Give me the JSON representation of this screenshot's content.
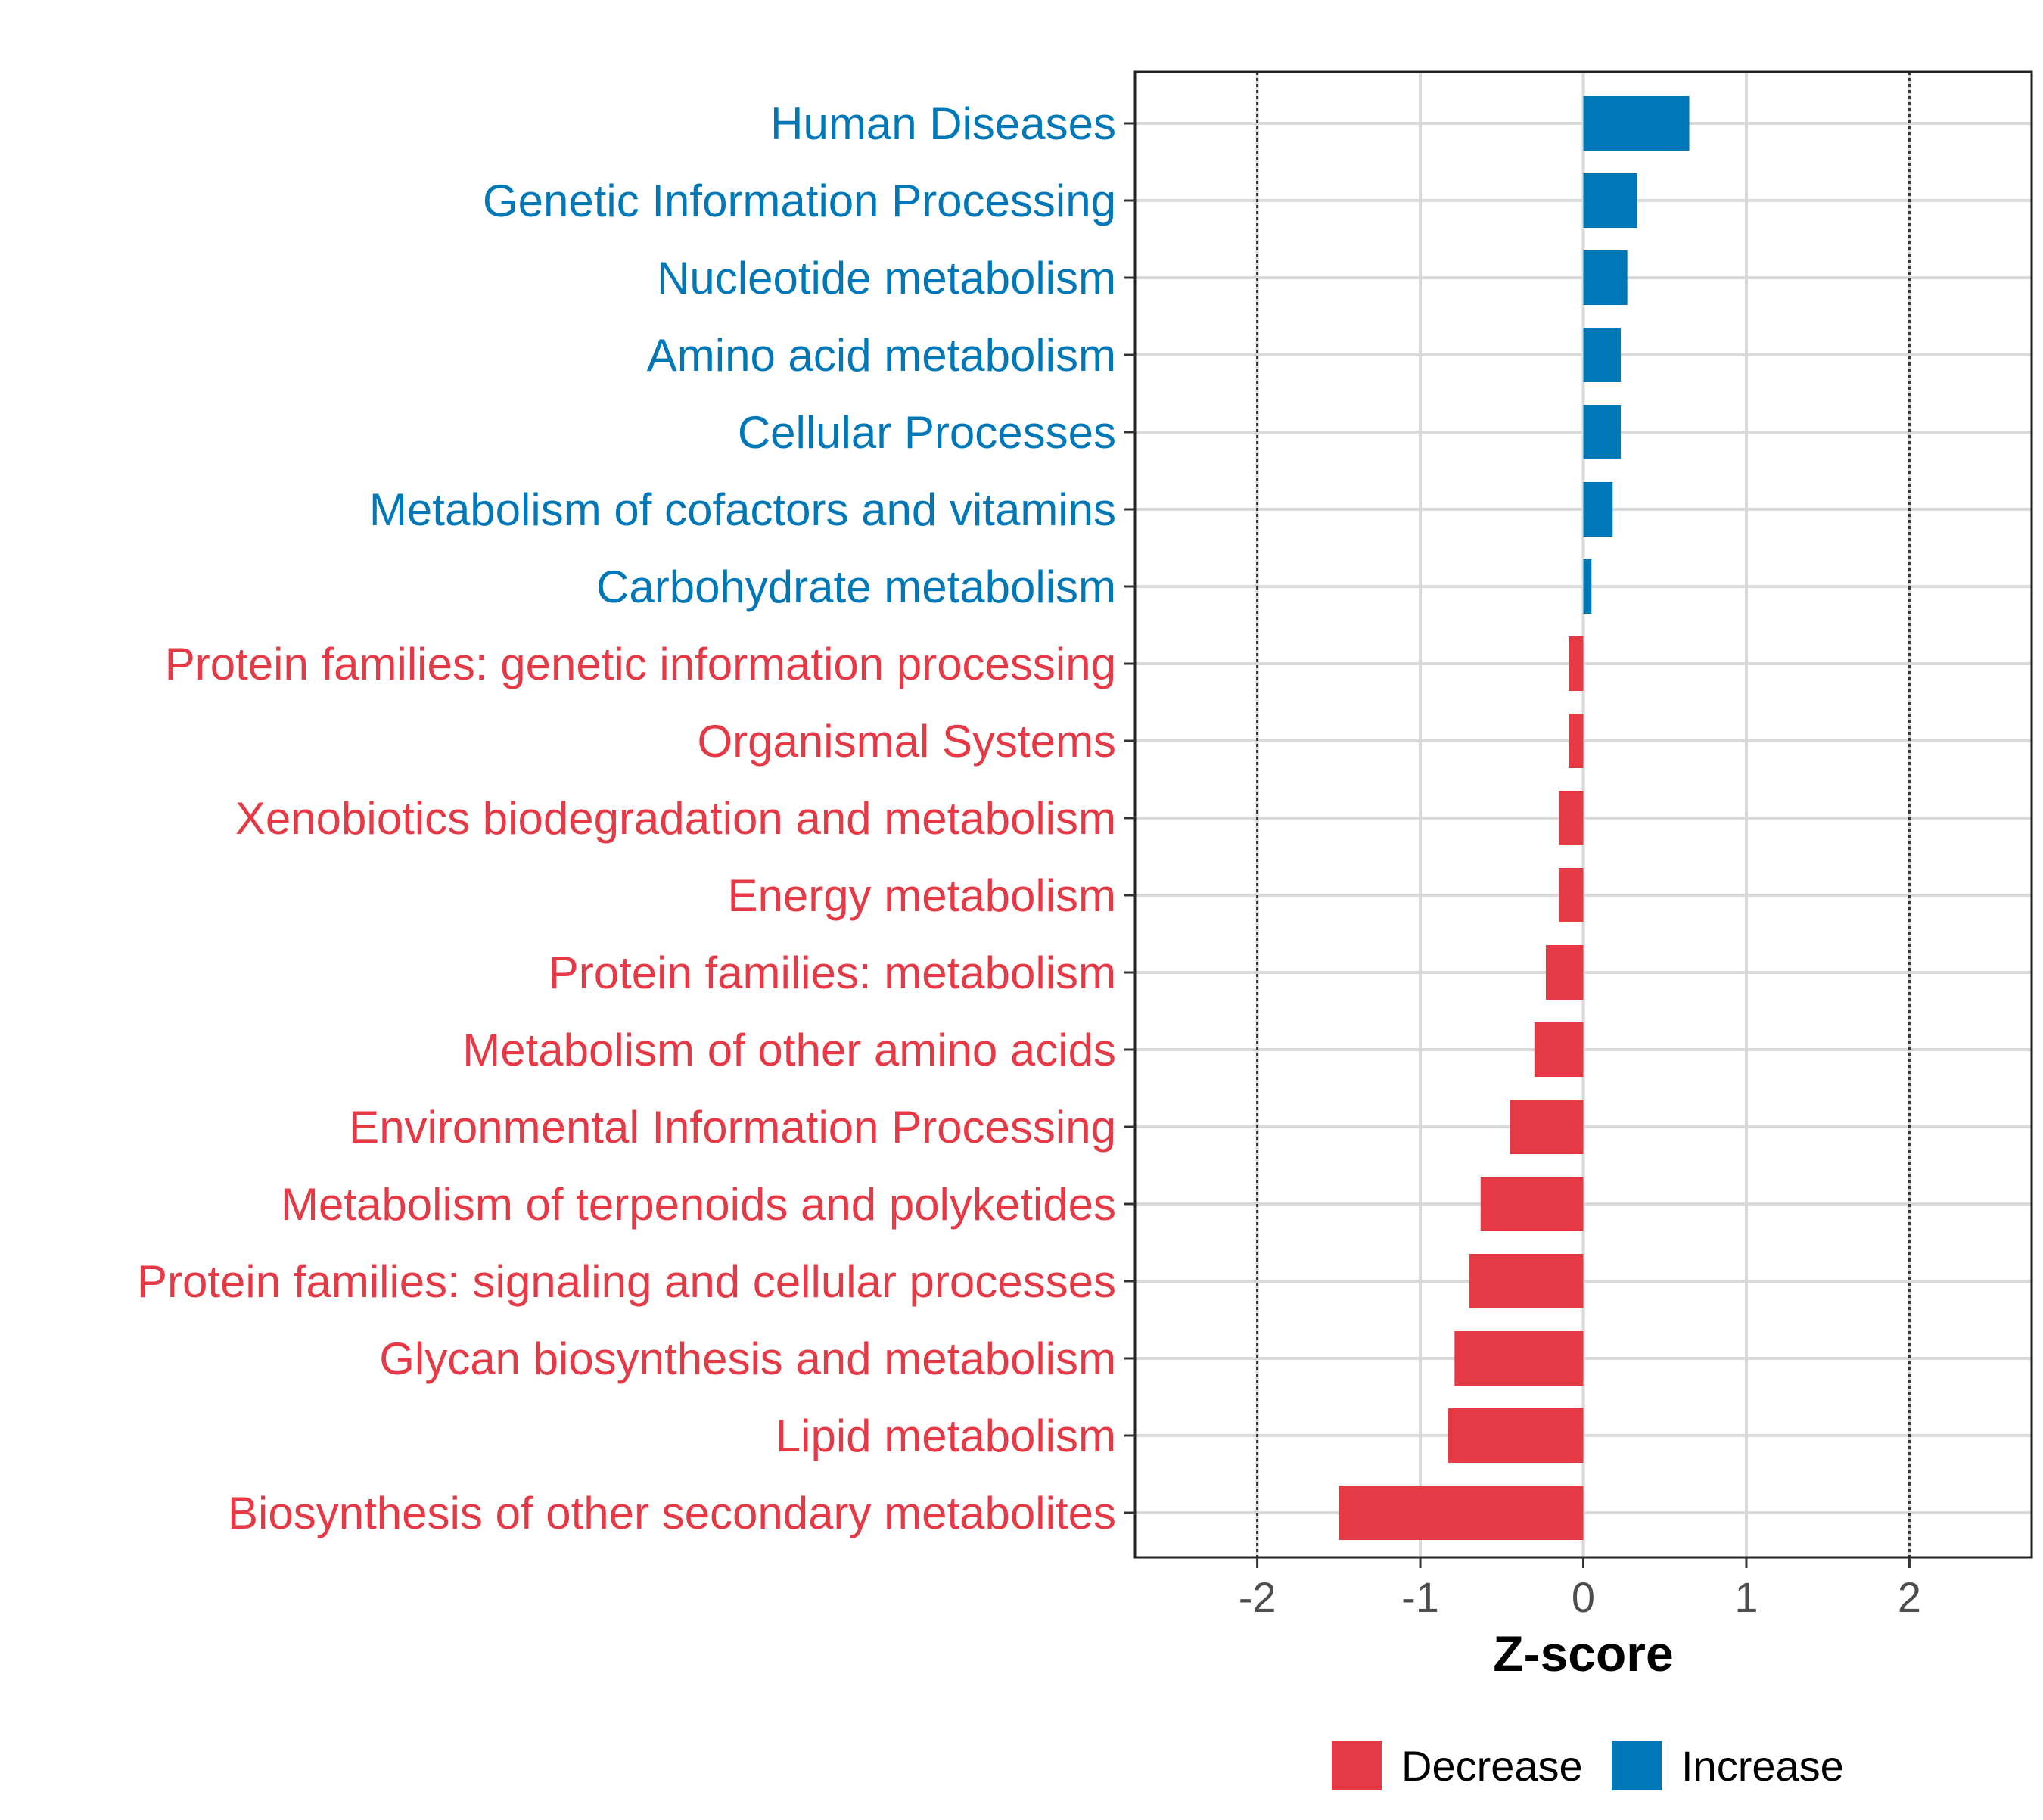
{
  "chart_data": {
    "type": "bar",
    "orientation": "horizontal",
    "title": "",
    "xlabel": "Z-score",
    "ylabel": "",
    "xlim": [
      -2.75,
      2.75
    ],
    "xticks": [
      -2,
      -1,
      0,
      1,
      2
    ],
    "tick_labels": [
      "-2",
      "-1",
      "0",
      "1",
      "2"
    ],
    "reference_lines": [
      -2,
      2
    ],
    "grid": true,
    "legend_position": "bottom",
    "colors": {
      "Decrease": "#e63946",
      "Increase": "#0077b6"
    },
    "legend": [
      "Decrease",
      "Increase"
    ],
    "categories": [
      "Human Diseases",
      "Genetic Information Processing",
      "Nucleotide metabolism",
      "Amino acid metabolism",
      "Cellular Processes",
      "Metabolism of cofactors and vitamins",
      "Carbohydrate metabolism",
      "Protein families: genetic information processing",
      "Organismal Systems",
      "Xenobiotics biodegradation and metabolism",
      "Energy metabolism",
      "Protein families: metabolism",
      "Metabolism of other amino acids",
      "Environmental Information Processing",
      "Metabolism of terpenoids and polyketides",
      "Protein families: signaling and cellular processes",
      "Glycan biosynthesis and metabolism",
      "Lipid metabolism",
      "Biosynthesis of other secondary metabolites"
    ],
    "values": [
      0.65,
      0.33,
      0.27,
      0.23,
      0.23,
      0.18,
      0.05,
      -0.09,
      -0.09,
      -0.15,
      -0.15,
      -0.23,
      -0.3,
      -0.45,
      -0.63,
      -0.7,
      -0.79,
      -0.83,
      -1.5
    ],
    "groups": [
      "Increase",
      "Increase",
      "Increase",
      "Increase",
      "Increase",
      "Increase",
      "Increase",
      "Decrease",
      "Decrease",
      "Decrease",
      "Decrease",
      "Decrease",
      "Decrease",
      "Decrease",
      "Decrease",
      "Decrease",
      "Decrease",
      "Decrease",
      "Decrease"
    ]
  }
}
